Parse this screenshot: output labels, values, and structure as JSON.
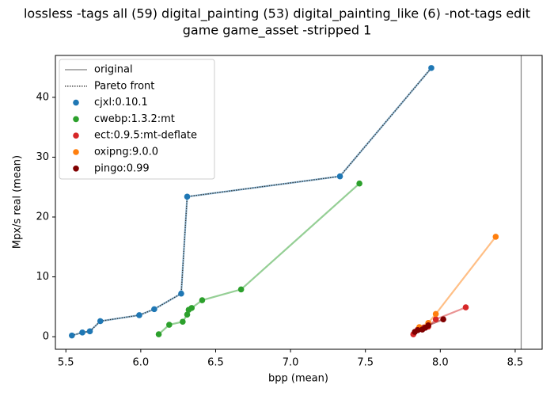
{
  "chart_data": {
    "type": "scatter",
    "title": [
      "lossless -tags all (59) digital_painting (53) digital_painting_like (6) -not-tags edit",
      "game game_asset -stripped 1"
    ],
    "x_label": "bpp (mean)",
    "y_label": "Mpx/s real (mean)",
    "xlim": [
      5.43,
      8.68
    ],
    "ylim": [
      -2.1,
      47.0
    ],
    "xticks": [
      {
        "value": 5.5,
        "label": "5.5"
      },
      {
        "value": 6,
        "label": "6.0"
      },
      {
        "value": 6.5,
        "label": "6.5"
      },
      {
        "value": 7,
        "label": "7.0"
      },
      {
        "value": 7.5,
        "label": "7.5"
      },
      {
        "value": 8,
        "label": "8.0"
      },
      {
        "value": 8.5,
        "label": "8.5"
      }
    ],
    "yticks": [
      0,
      10,
      20,
      30,
      40
    ],
    "legend": "upper left",
    "reference_line": {
      "name": "original",
      "color": "#808080",
      "x": 8.54
    },
    "pareto": {
      "name": "Pareto front",
      "color": "#333333",
      "x": [
        5.54,
        5.61,
        5.66,
        5.73,
        5.99,
        6.09,
        6.27,
        6.31,
        7.33,
        7.94
      ],
      "y": [
        0.2,
        0.7,
        0.9,
        2.6,
        3.6,
        4.6,
        7.2,
        23.4,
        26.8,
        44.9
      ]
    },
    "series": [
      {
        "name": "cjxl:0.10.1",
        "color": "#1f77b4",
        "x": [
          5.54,
          5.61,
          5.66,
          5.73,
          5.99,
          6.09,
          6.27,
          6.31,
          7.33,
          7.94
        ],
        "y": [
          0.2,
          0.7,
          0.9,
          2.6,
          3.6,
          4.6,
          7.2,
          23.4,
          26.8,
          44.9
        ]
      },
      {
        "name": "cwebp:1.3.2:mt",
        "color": "#2ca02c",
        "x": [
          6.12,
          6.19,
          6.28,
          6.31,
          6.32,
          6.34,
          6.41,
          6.67,
          7.46
        ],
        "y": [
          0.4,
          2.0,
          2.5,
          3.7,
          4.5,
          4.8,
          6.1,
          7.9,
          25.6
        ]
      },
      {
        "name": "ect:0.9.5:mt-deflate",
        "color": "#d62728",
        "x": [
          7.82,
          7.85,
          7.89,
          7.92,
          7.97,
          8.17
        ],
        "y": [
          0.4,
          1.2,
          1.5,
          1.7,
          2.9,
          4.9
        ]
      },
      {
        "name": "oxipng:9.0.0",
        "color": "#ff7f0e",
        "x": [
          7.86,
          7.92,
          7.97,
          8.37
        ],
        "y": [
          1.6,
          2.3,
          3.8,
          16.7
        ]
      },
      {
        "name": "pingo:0.99",
        "color": "#800000",
        "x": [
          7.83,
          7.85,
          7.88,
          7.9,
          7.92,
          8.02
        ],
        "y": [
          0.8,
          1.1,
          1.2,
          1.5,
          1.9,
          2.9
        ]
      }
    ]
  }
}
